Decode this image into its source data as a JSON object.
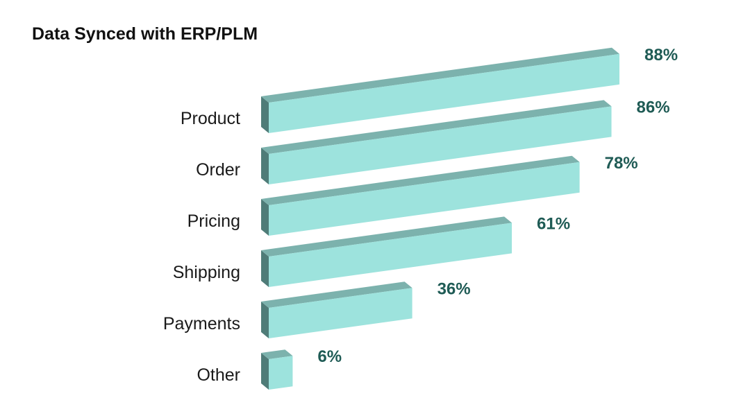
{
  "chart_data": {
    "type": "bar",
    "orientation": "horizontal",
    "title": "Data Synced with ERP/PLM",
    "categories": [
      "Product",
      "Order",
      "Pricing",
      "Shipping",
      "Payments",
      "Other"
    ],
    "values": [
      88,
      86,
      78,
      61,
      36,
      6
    ],
    "value_labels": [
      "88%",
      "86%",
      "78%",
      "61%",
      "36%",
      "6%"
    ],
    "unit": "%",
    "xlim": [
      0,
      88
    ],
    "grid": false,
    "legend": "none",
    "colors": {
      "bar_face": "#9de3dd",
      "bar_top": "#7cb2ad",
      "bar_side": "#4f7c78",
      "value_text": "#1f5b55"
    }
  }
}
